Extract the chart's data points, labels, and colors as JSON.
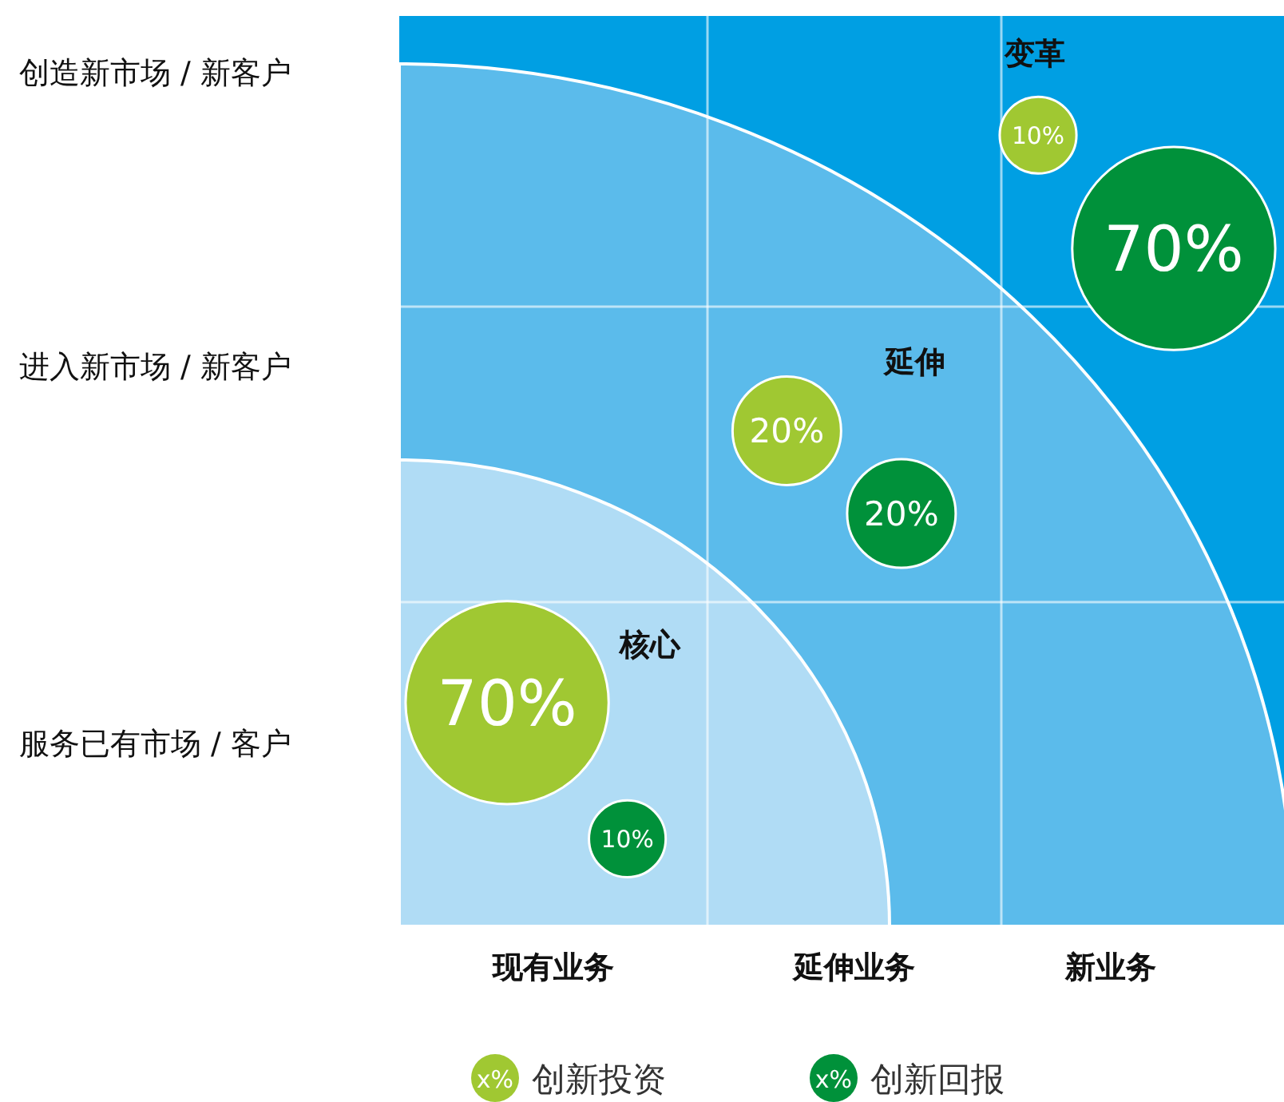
{
  "chart_data": {
    "type": "other",
    "categories": [
      "现有业务",
      "延伸业务",
      "新业务"
    ],
    "y_categories": [
      "创造新市场 / 新客户",
      "进入新市场 / 新客户",
      "服务已有市场 / 客户"
    ],
    "series": [
      {
        "name": "创新投资",
        "color": "#a0c832",
        "values": [
          70,
          20,
          10
        ],
        "value_labels": [
          "70%",
          "20%",
          "10%"
        ]
      },
      {
        "name": "创新回报",
        "color": "#00913a",
        "values": [
          10,
          20,
          70
        ],
        "value_labels": [
          "10%",
          "20%",
          "70%"
        ]
      }
    ],
    "annotations": [
      "核心",
      "延伸",
      "变革",
      "x%"
    ],
    "legend": "bottom"
  }
}
